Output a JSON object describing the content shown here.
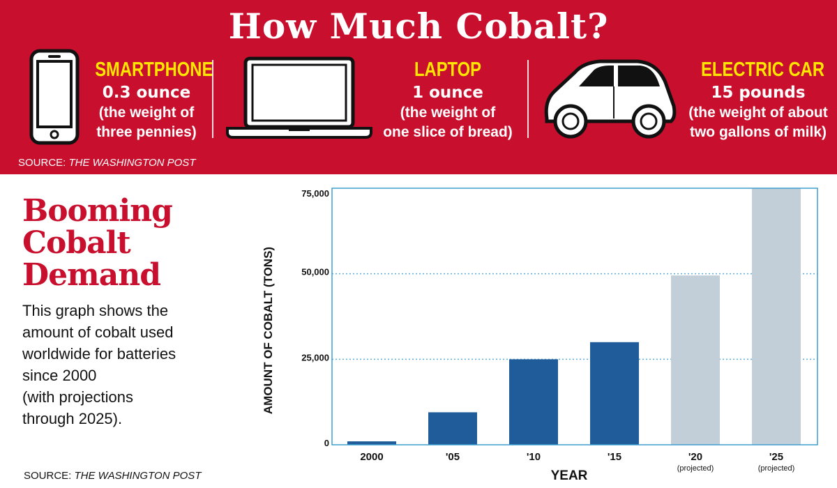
{
  "banner": {
    "title": "How Much Cobalt?",
    "source_prefix": "SOURCE: ",
    "source_name": "THE WASHINGTON POST",
    "devices": [
      {
        "label": "SMARTPHONE",
        "amount": "0.3 ounce",
        "compare_line1": "(the weight of",
        "compare_line2": "three pennies)",
        "icon": "smartphone-icon"
      },
      {
        "label": "LAPTOP",
        "amount": "1 ounce",
        "compare_line1": "(the weight of",
        "compare_line2": "one slice of bread)",
        "icon": "laptop-icon"
      },
      {
        "label": "ELECTRIC CAR",
        "amount": "15 pounds",
        "compare_line1": "(the weight of about",
        "compare_line2": "two gallons of milk)",
        "icon": "electric-car-icon"
      }
    ]
  },
  "panel": {
    "title_lines": [
      "Booming",
      "Cobalt",
      "Demand"
    ],
    "description_lines": [
      "This graph shows the",
      "amount of cobalt used",
      "worldwide for batteries",
      "since 2000",
      "(with projections",
      "through 2025)."
    ],
    "source_prefix": "SOURCE: ",
    "source_name": "THE WASHINGTON POST"
  },
  "colors": {
    "banner_red": "#c8102e",
    "label_yellow": "#ffe600",
    "actual_bar": "#1f5c99",
    "projected_bar": "#c3cfd8",
    "frame": "#3c9fcf",
    "gridline": "#5aaee0"
  },
  "chart_data": {
    "type": "bar",
    "categories": [
      "2000",
      "'05",
      "'10",
      "'15",
      "'20",
      "'25"
    ],
    "category_notes": [
      "",
      "",
      "",
      "",
      "(projected)",
      "(projected)"
    ],
    "values": [
      1000,
      9500,
      25000,
      30000,
      49500,
      77000
    ],
    "projected": [
      false,
      false,
      false,
      false,
      true,
      true
    ],
    "xlabel": "YEAR",
    "ylabel": "AMOUNT OF COBALT (TONS)",
    "ylim": [
      0,
      75000
    ],
    "yticks": [
      0,
      25000,
      50000,
      75000
    ],
    "ytick_labels": [
      "0",
      "25,000",
      "50,000",
      "75,000"
    ],
    "grid_values": [
      25000,
      50000
    ],
    "grid": "dotted horizontal"
  }
}
